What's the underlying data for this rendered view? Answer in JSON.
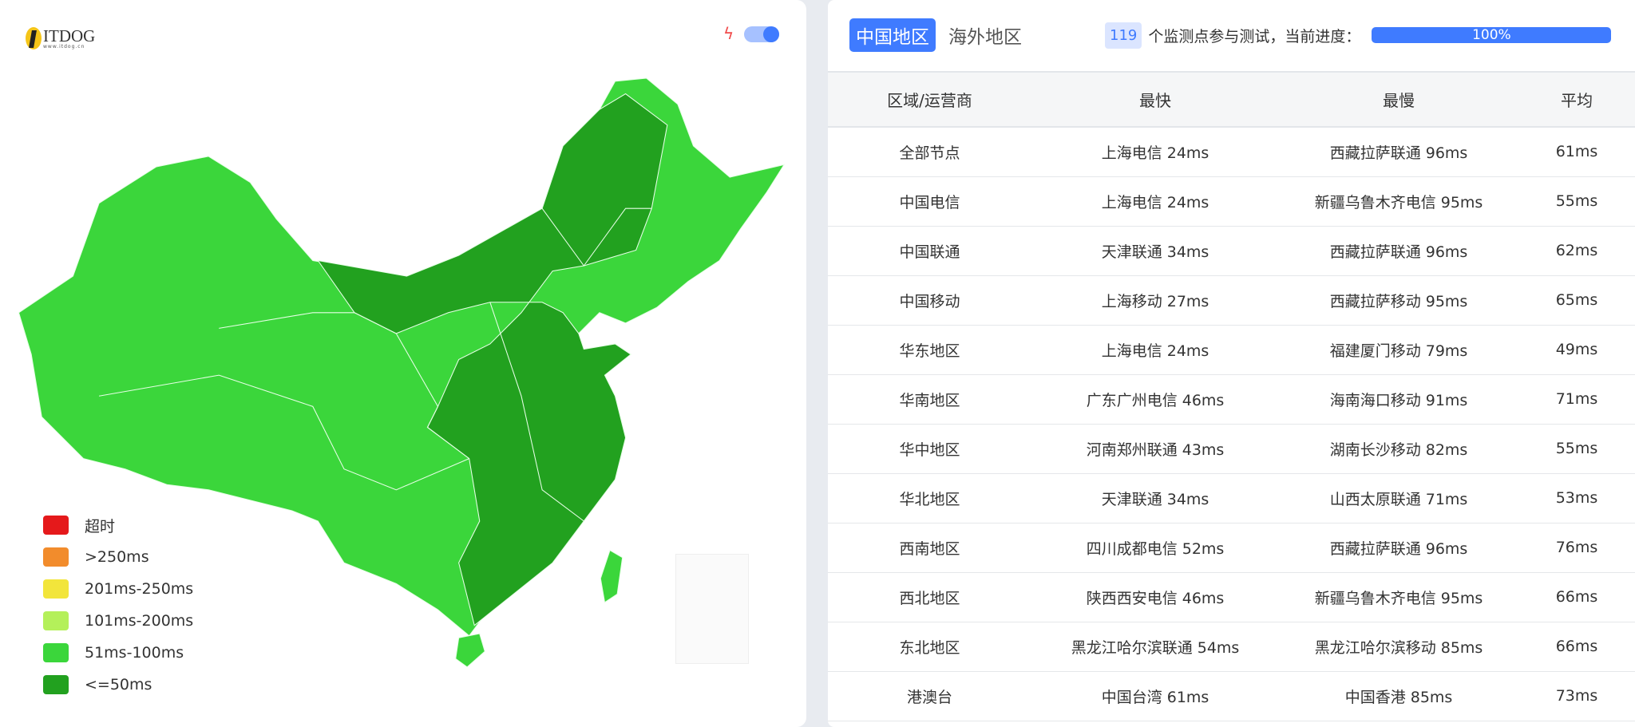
{
  "logo": {
    "name": "ITDOG",
    "sub": "www.itdog.cn"
  },
  "map": {
    "colors": {
      "light": "#3bd63b",
      "dark": "#22a11f"
    }
  },
  "legend": [
    {
      "label": "超时",
      "color": "#e5191b"
    },
    {
      "label": ">250ms",
      "color": "#f28c2c"
    },
    {
      "label": "201ms-250ms",
      "color": "#f2e53b"
    },
    {
      "label": "101ms-200ms",
      "color": "#b4f05a"
    },
    {
      "label": "51ms-100ms",
      "color": "#3bd63b"
    },
    {
      "label": "<=50ms",
      "color": "#22a11f"
    }
  ],
  "tabs": [
    {
      "label": "中国地区",
      "active": true
    },
    {
      "label": "海外地区",
      "active": false
    }
  ],
  "status": {
    "count": "119",
    "text": "个监测点参与测试，当前进度：",
    "progress_label": "100%",
    "progress": 100
  },
  "table": {
    "headers": [
      "区域/运营商",
      "最快",
      "最慢",
      "平均"
    ],
    "rows": [
      [
        "全部节点",
        "上海电信 24ms",
        "西藏拉萨联通 96ms",
        "61ms"
      ],
      [
        "中国电信",
        "上海电信 24ms",
        "新疆乌鲁木齐电信 95ms",
        "55ms"
      ],
      [
        "中国联通",
        "天津联通 34ms",
        "西藏拉萨联通 96ms",
        "62ms"
      ],
      [
        "中国移动",
        "上海移动 27ms",
        "西藏拉萨移动 95ms",
        "65ms"
      ],
      [
        "华东地区",
        "上海电信 24ms",
        "福建厦门移动 79ms",
        "49ms"
      ],
      [
        "华南地区",
        "广东广州电信 46ms",
        "海南海口移动 91ms",
        "71ms"
      ],
      [
        "华中地区",
        "河南郑州联通 43ms",
        "湖南长沙移动 82ms",
        "55ms"
      ],
      [
        "华北地区",
        "天津联通 34ms",
        "山西太原联通 71ms",
        "53ms"
      ],
      [
        "西南地区",
        "四川成都电信 52ms",
        "西藏拉萨联通 96ms",
        "76ms"
      ],
      [
        "西北地区",
        "陕西西安电信 46ms",
        "新疆乌鲁木齐电信 95ms",
        "66ms"
      ],
      [
        "东北地区",
        "黑龙江哈尔滨联通 54ms",
        "黑龙江哈尔滨移动 85ms",
        "66ms"
      ],
      [
        "港澳台",
        "中国台湾 61ms",
        "中国香港 85ms",
        "73ms"
      ]
    ]
  }
}
